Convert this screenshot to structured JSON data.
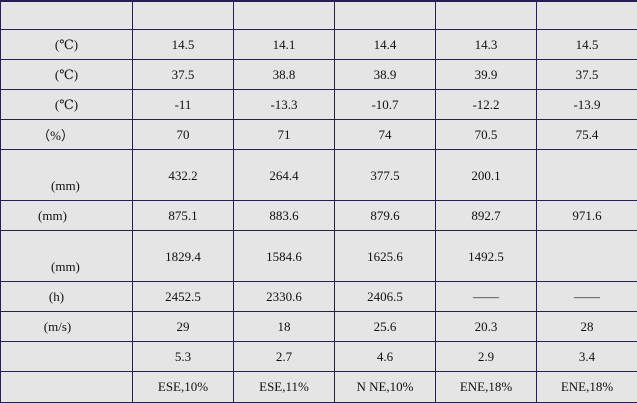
{
  "table": {
    "header": [
      "",
      "",
      "",
      "",
      "",
      ""
    ],
    "rows": [
      {
        "label": "(℃)",
        "values": [
          "14.5",
          "14.1",
          "14.4",
          "14.3",
          "14.5"
        ]
      },
      {
        "label": "(℃)",
        "values": [
          "37.5",
          "38.8",
          "38.9",
          "39.9",
          "37.5"
        ]
      },
      {
        "label": "(℃)",
        "values": [
          "-11",
          "-13.3",
          "-10.7",
          "-12.2",
          "-13.9"
        ]
      },
      {
        "label": "（%）",
        "values": [
          "70",
          "71",
          "74",
          "70.5",
          "75.4"
        ]
      },
      {
        "label": "(mm)",
        "values": [
          "432.2",
          "264.4",
          "377.5",
          "200.1",
          ""
        ]
      },
      {
        "label": "(mm)",
        "values": [
          "875.1",
          "883.6",
          "879.6",
          "892.7",
          "971.6"
        ]
      },
      {
        "label": "(mm)",
        "values": [
          "1829.4",
          "1584.6",
          "1625.6",
          "1492.5",
          ""
        ]
      },
      {
        "label": "(h)",
        "values": [
          "2452.5",
          "2330.6",
          "2406.5",
          "——",
          "——"
        ]
      },
      {
        "label": "(m/s)",
        "values": [
          "29",
          "18",
          "25.6",
          "20.3",
          "28"
        ]
      },
      {
        "label": "",
        "values": [
          "5.3",
          "2.7",
          "4.6",
          "2.9",
          "3.4"
        ]
      },
      {
        "label": "",
        "values": [
          "ESE,10%",
          "ESE,11%",
          "N NE,10%",
          "ENE,18%",
          "ENE,18%"
        ]
      }
    ]
  }
}
